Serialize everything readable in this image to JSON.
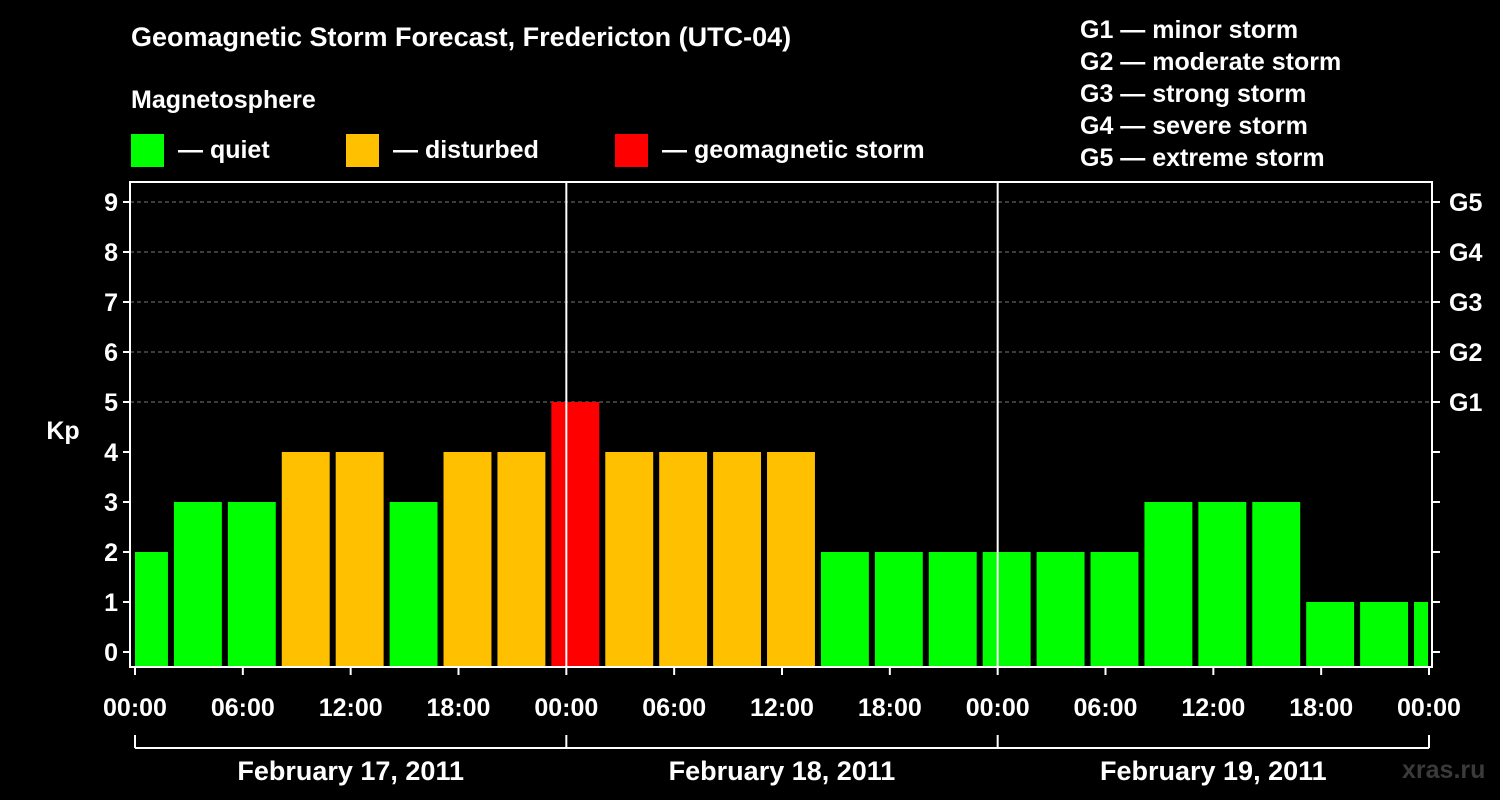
{
  "chart_data": {
    "type": "bar",
    "title": "Geomagnetic Storm Forecast, Fredericton (UTC-04)",
    "subtitle": "Magnetosphere",
    "ylabel": "Kp",
    "ylim": [
      0,
      9
    ],
    "yticks": [
      "0",
      "1",
      "2",
      "3",
      "4",
      "5",
      "6",
      "7",
      "8",
      "9"
    ],
    "right_ticks": [
      {
        "kp": 5,
        "label": "G1"
      },
      {
        "kp": 6,
        "label": "G2"
      },
      {
        "kp": 7,
        "label": "G3"
      },
      {
        "kp": 8,
        "label": "G4"
      },
      {
        "kp": 9,
        "label": "G5"
      }
    ],
    "x_start": "2011-02-17T00:00",
    "x_end": "2011-02-20T00:00",
    "bar_interval_hours": 3,
    "bar_start": "2011-02-16T23:00",
    "xtick_labels": [
      "00:00",
      "06:00",
      "12:00",
      "18:00",
      "00:00",
      "06:00",
      "12:00",
      "18:00",
      "00:00",
      "06:00",
      "12:00",
      "18:00",
      "00:00"
    ],
    "days": [
      "February 17, 2011",
      "February 18, 2011",
      "February 19, 2011"
    ],
    "values": [
      2,
      3,
      3,
      4,
      4,
      3,
      4,
      4,
      5,
      4,
      4,
      4,
      4,
      2,
      2,
      2,
      2,
      2,
      2,
      3,
      3,
      3,
      1,
      1,
      1
    ],
    "legend": [
      {
        "label": "— quiet",
        "color": "#00ff00"
      },
      {
        "label": "— disturbed",
        "color": "#ffc000"
      },
      {
        "label": "— geomagnetic storm",
        "color": "#ff0000"
      }
    ],
    "storm_scale": [
      "G1 — minor storm",
      "G2 — moderate storm",
      "G3 — strong storm",
      "G4 — severe storm",
      "G5 — extreme storm"
    ],
    "grid": true
  },
  "watermark": "xras.ru"
}
